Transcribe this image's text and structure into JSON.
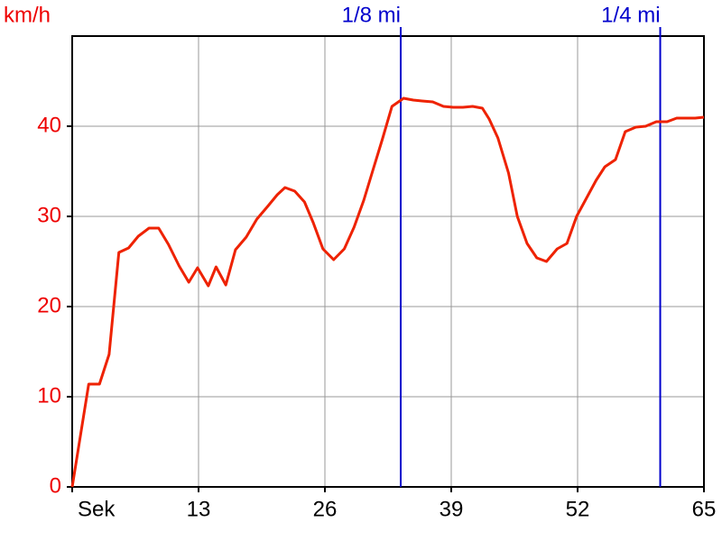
{
  "chart_data": {
    "type": "line",
    "y_label": "km/h",
    "xlim": [
      0,
      65
    ],
    "ylim": [
      0,
      50
    ],
    "xticks": [
      {
        "value": 0,
        "label": "Sek"
      },
      13,
      26,
      39,
      52,
      65
    ],
    "yticks": [
      0,
      10,
      20,
      30,
      40
    ],
    "grid": true,
    "markers": [
      {
        "x": 33.8,
        "label": "1/8 mi",
        "color": "#0000cc"
      },
      {
        "x": 60.5,
        "label": "1/4 mi",
        "color": "#0000cc"
      }
    ],
    "x": [
      0,
      1.7,
      2.8,
      3.8,
      4.8,
      5.8,
      6.8,
      7.9,
      8.9,
      9.9,
      11.0,
      12.0,
      12.9,
      14.0,
      14.8,
      15.8,
      16.8,
      17.9,
      19.0,
      20.1,
      21.1,
      21.9,
      22.9,
      23.9,
      24.8,
      25.8,
      26.9,
      28.0,
      29.0,
      30.0,
      30.9,
      31.9,
      32.9,
      34.1,
      35.1,
      36.0,
      37.1,
      38.2,
      39.2,
      40.2,
      41.2,
      42.2,
      42.9,
      43.8,
      44.9,
      45.8,
      46.8,
      47.8,
      48.8,
      49.9,
      50.9,
      51.9,
      52.9,
      53.9,
      54.8,
      55.9,
      56.9,
      58.0,
      59.0,
      60.1,
      61.2,
      62.2,
      63.1,
      64.1,
      65
    ],
    "series": [
      {
        "color": "#ee2200",
        "values": [
          0,
          11.4,
          11.4,
          14.7,
          26,
          26.5,
          27.8,
          28.7,
          28.7,
          26.9,
          24.5,
          22.7,
          24.3,
          22.3,
          24.4,
          22.4,
          26.3,
          27.7,
          29.7,
          31.1,
          32.4,
          33.2,
          32.8,
          31.6,
          29.3,
          26.4,
          25.2,
          26.4,
          28.8,
          31.8,
          35,
          38.5,
          42.2,
          43.1,
          42.9,
          42.8,
          42.7,
          42.2,
          42.1,
          42.1,
          42.2,
          42,
          40.8,
          38.7,
          34.8,
          30,
          27,
          25.4,
          25,
          26.4,
          27,
          30,
          32,
          34,
          35.5,
          36.3,
          39.4,
          39.9,
          40,
          40.5,
          40.5,
          40.9,
          40.9,
          40.9,
          41
        ]
      }
    ]
  }
}
